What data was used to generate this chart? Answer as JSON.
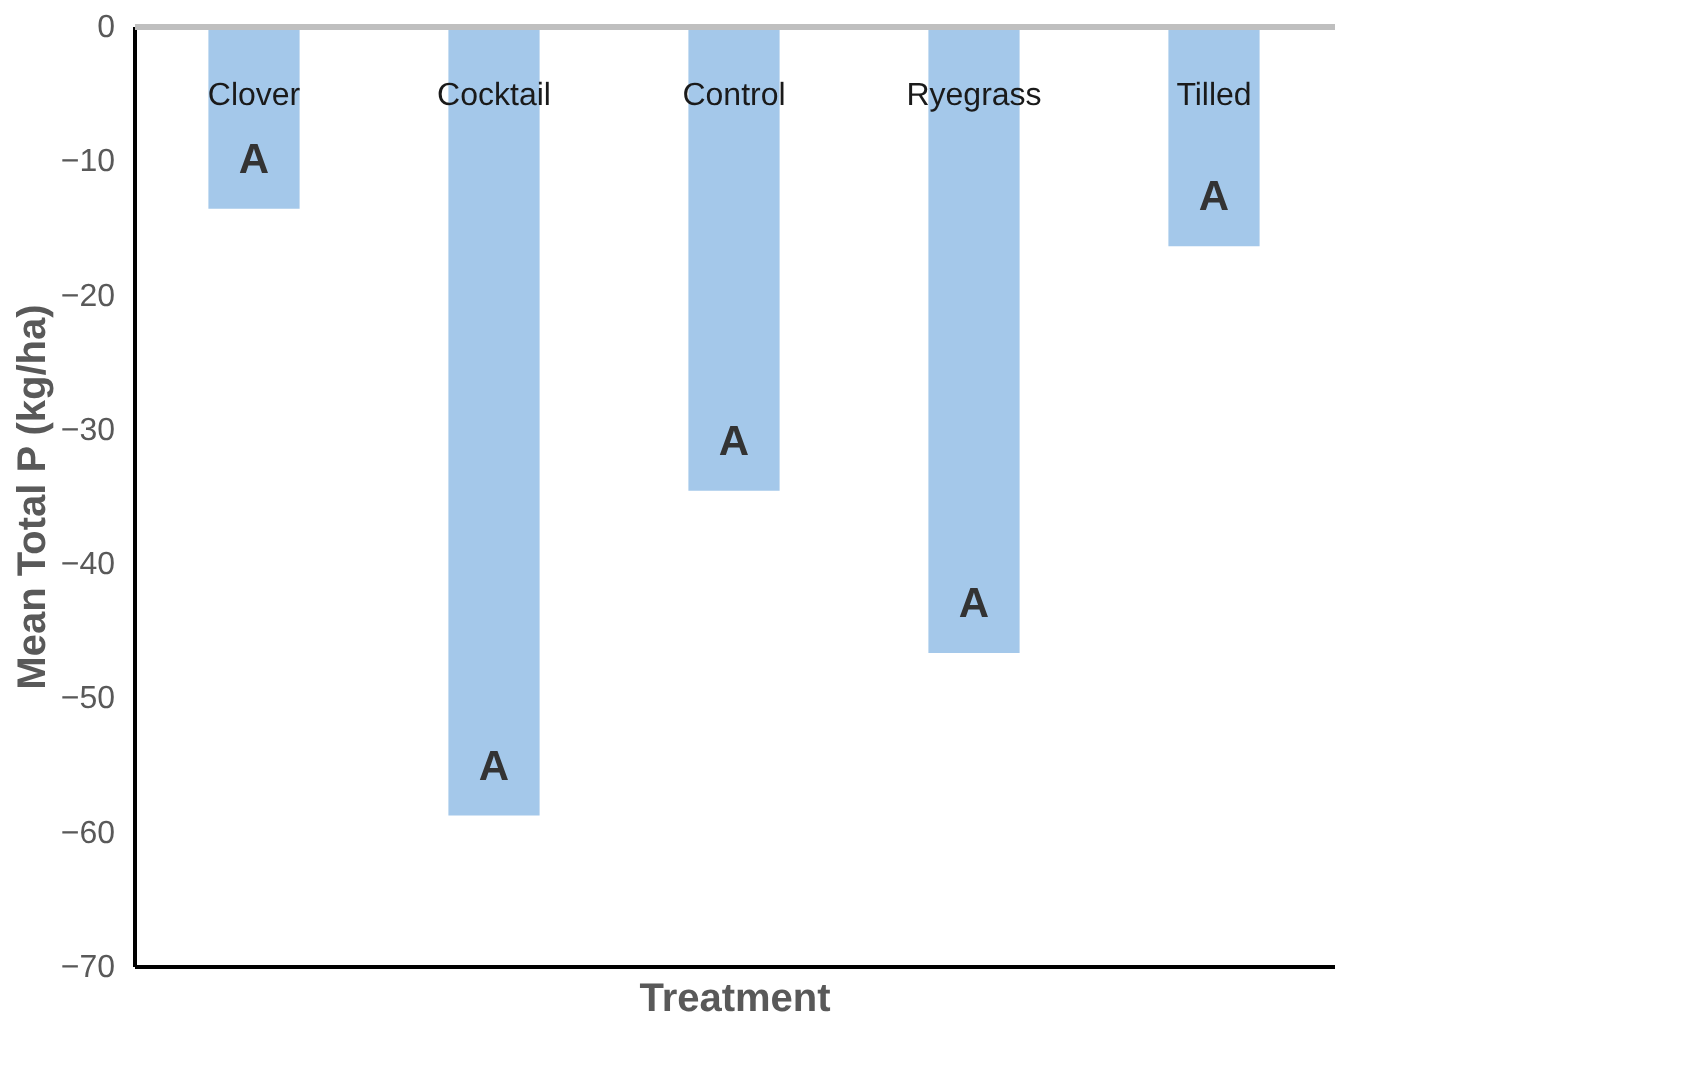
{
  "chart_data": {
    "type": "bar",
    "xlabel": "Treatment",
    "ylabel": "Mean Total P (kg/ha)",
    "categories": [
      "Clover",
      "Cocktail",
      "Control",
      "Ryegrass",
      "Tilled"
    ],
    "values": [
      -13.6,
      -58.8,
      -34.6,
      -46.7,
      -16.4
    ],
    "color": "#a4c8ea",
    "ylim": [
      -70,
      0
    ],
    "yticks": [
      0,
      -10,
      -20,
      -30,
      -40,
      -50,
      -60,
      -70
    ],
    "grid": false,
    "annotations": [
      "A",
      "A",
      "A",
      "A",
      "A"
    ]
  }
}
